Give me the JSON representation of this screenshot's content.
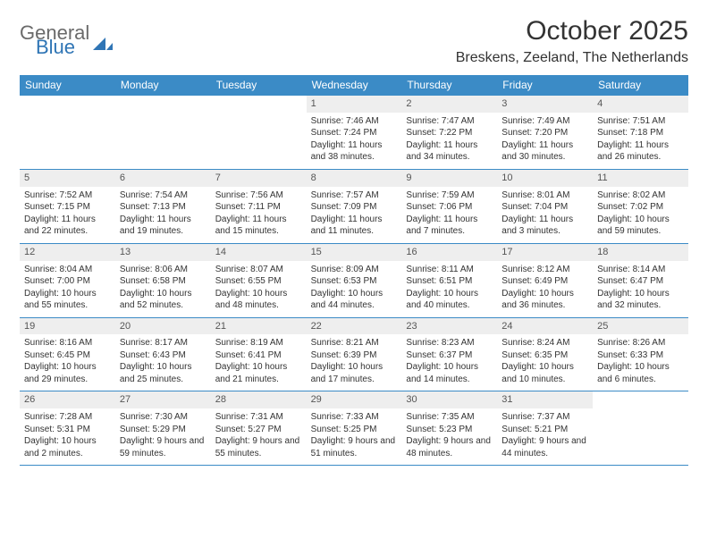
{
  "brand": {
    "general": "General",
    "blue": "Blue"
  },
  "title": "October 2025",
  "location": "Breskens, Zeeland, The Netherlands",
  "colors": {
    "header_bg": "#3b8bc6",
    "header_text": "#ffffff",
    "band_bg": "#eeeeee",
    "rule": "#3b8bc6",
    "text": "#333333",
    "logo_gray": "#6a6a6a",
    "logo_blue": "#2f75b5",
    "page_bg": "#ffffff"
  },
  "day_headers": [
    "Sunday",
    "Monday",
    "Tuesday",
    "Wednesday",
    "Thursday",
    "Friday",
    "Saturday"
  ],
  "weeks": [
    [
      {
        "n": "",
        "sr": "",
        "ss": "",
        "dl": ""
      },
      {
        "n": "",
        "sr": "",
        "ss": "",
        "dl": ""
      },
      {
        "n": "",
        "sr": "",
        "ss": "",
        "dl": ""
      },
      {
        "n": "1",
        "sr": "Sunrise: 7:46 AM",
        "ss": "Sunset: 7:24 PM",
        "dl": "Daylight: 11 hours and 38 minutes."
      },
      {
        "n": "2",
        "sr": "Sunrise: 7:47 AM",
        "ss": "Sunset: 7:22 PM",
        "dl": "Daylight: 11 hours and 34 minutes."
      },
      {
        "n": "3",
        "sr": "Sunrise: 7:49 AM",
        "ss": "Sunset: 7:20 PM",
        "dl": "Daylight: 11 hours and 30 minutes."
      },
      {
        "n": "4",
        "sr": "Sunrise: 7:51 AM",
        "ss": "Sunset: 7:18 PM",
        "dl": "Daylight: 11 hours and 26 minutes."
      }
    ],
    [
      {
        "n": "5",
        "sr": "Sunrise: 7:52 AM",
        "ss": "Sunset: 7:15 PM",
        "dl": "Daylight: 11 hours and 22 minutes."
      },
      {
        "n": "6",
        "sr": "Sunrise: 7:54 AM",
        "ss": "Sunset: 7:13 PM",
        "dl": "Daylight: 11 hours and 19 minutes."
      },
      {
        "n": "7",
        "sr": "Sunrise: 7:56 AM",
        "ss": "Sunset: 7:11 PM",
        "dl": "Daylight: 11 hours and 15 minutes."
      },
      {
        "n": "8",
        "sr": "Sunrise: 7:57 AM",
        "ss": "Sunset: 7:09 PM",
        "dl": "Daylight: 11 hours and 11 minutes."
      },
      {
        "n": "9",
        "sr": "Sunrise: 7:59 AM",
        "ss": "Sunset: 7:06 PM",
        "dl": "Daylight: 11 hours and 7 minutes."
      },
      {
        "n": "10",
        "sr": "Sunrise: 8:01 AM",
        "ss": "Sunset: 7:04 PM",
        "dl": "Daylight: 11 hours and 3 minutes."
      },
      {
        "n": "11",
        "sr": "Sunrise: 8:02 AM",
        "ss": "Sunset: 7:02 PM",
        "dl": "Daylight: 10 hours and 59 minutes."
      }
    ],
    [
      {
        "n": "12",
        "sr": "Sunrise: 8:04 AM",
        "ss": "Sunset: 7:00 PM",
        "dl": "Daylight: 10 hours and 55 minutes."
      },
      {
        "n": "13",
        "sr": "Sunrise: 8:06 AM",
        "ss": "Sunset: 6:58 PM",
        "dl": "Daylight: 10 hours and 52 minutes."
      },
      {
        "n": "14",
        "sr": "Sunrise: 8:07 AM",
        "ss": "Sunset: 6:55 PM",
        "dl": "Daylight: 10 hours and 48 minutes."
      },
      {
        "n": "15",
        "sr": "Sunrise: 8:09 AM",
        "ss": "Sunset: 6:53 PM",
        "dl": "Daylight: 10 hours and 44 minutes."
      },
      {
        "n": "16",
        "sr": "Sunrise: 8:11 AM",
        "ss": "Sunset: 6:51 PM",
        "dl": "Daylight: 10 hours and 40 minutes."
      },
      {
        "n": "17",
        "sr": "Sunrise: 8:12 AM",
        "ss": "Sunset: 6:49 PM",
        "dl": "Daylight: 10 hours and 36 minutes."
      },
      {
        "n": "18",
        "sr": "Sunrise: 8:14 AM",
        "ss": "Sunset: 6:47 PM",
        "dl": "Daylight: 10 hours and 32 minutes."
      }
    ],
    [
      {
        "n": "19",
        "sr": "Sunrise: 8:16 AM",
        "ss": "Sunset: 6:45 PM",
        "dl": "Daylight: 10 hours and 29 minutes."
      },
      {
        "n": "20",
        "sr": "Sunrise: 8:17 AM",
        "ss": "Sunset: 6:43 PM",
        "dl": "Daylight: 10 hours and 25 minutes."
      },
      {
        "n": "21",
        "sr": "Sunrise: 8:19 AM",
        "ss": "Sunset: 6:41 PM",
        "dl": "Daylight: 10 hours and 21 minutes."
      },
      {
        "n": "22",
        "sr": "Sunrise: 8:21 AM",
        "ss": "Sunset: 6:39 PM",
        "dl": "Daylight: 10 hours and 17 minutes."
      },
      {
        "n": "23",
        "sr": "Sunrise: 8:23 AM",
        "ss": "Sunset: 6:37 PM",
        "dl": "Daylight: 10 hours and 14 minutes."
      },
      {
        "n": "24",
        "sr": "Sunrise: 8:24 AM",
        "ss": "Sunset: 6:35 PM",
        "dl": "Daylight: 10 hours and 10 minutes."
      },
      {
        "n": "25",
        "sr": "Sunrise: 8:26 AM",
        "ss": "Sunset: 6:33 PM",
        "dl": "Daylight: 10 hours and 6 minutes."
      }
    ],
    [
      {
        "n": "26",
        "sr": "Sunrise: 7:28 AM",
        "ss": "Sunset: 5:31 PM",
        "dl": "Daylight: 10 hours and 2 minutes."
      },
      {
        "n": "27",
        "sr": "Sunrise: 7:30 AM",
        "ss": "Sunset: 5:29 PM",
        "dl": "Daylight: 9 hours and 59 minutes."
      },
      {
        "n": "28",
        "sr": "Sunrise: 7:31 AM",
        "ss": "Sunset: 5:27 PM",
        "dl": "Daylight: 9 hours and 55 minutes."
      },
      {
        "n": "29",
        "sr": "Sunrise: 7:33 AM",
        "ss": "Sunset: 5:25 PM",
        "dl": "Daylight: 9 hours and 51 minutes."
      },
      {
        "n": "30",
        "sr": "Sunrise: 7:35 AM",
        "ss": "Sunset: 5:23 PM",
        "dl": "Daylight: 9 hours and 48 minutes."
      },
      {
        "n": "31",
        "sr": "Sunrise: 7:37 AM",
        "ss": "Sunset: 5:21 PM",
        "dl": "Daylight: 9 hours and 44 minutes."
      },
      {
        "n": "",
        "sr": "",
        "ss": "",
        "dl": ""
      }
    ]
  ]
}
